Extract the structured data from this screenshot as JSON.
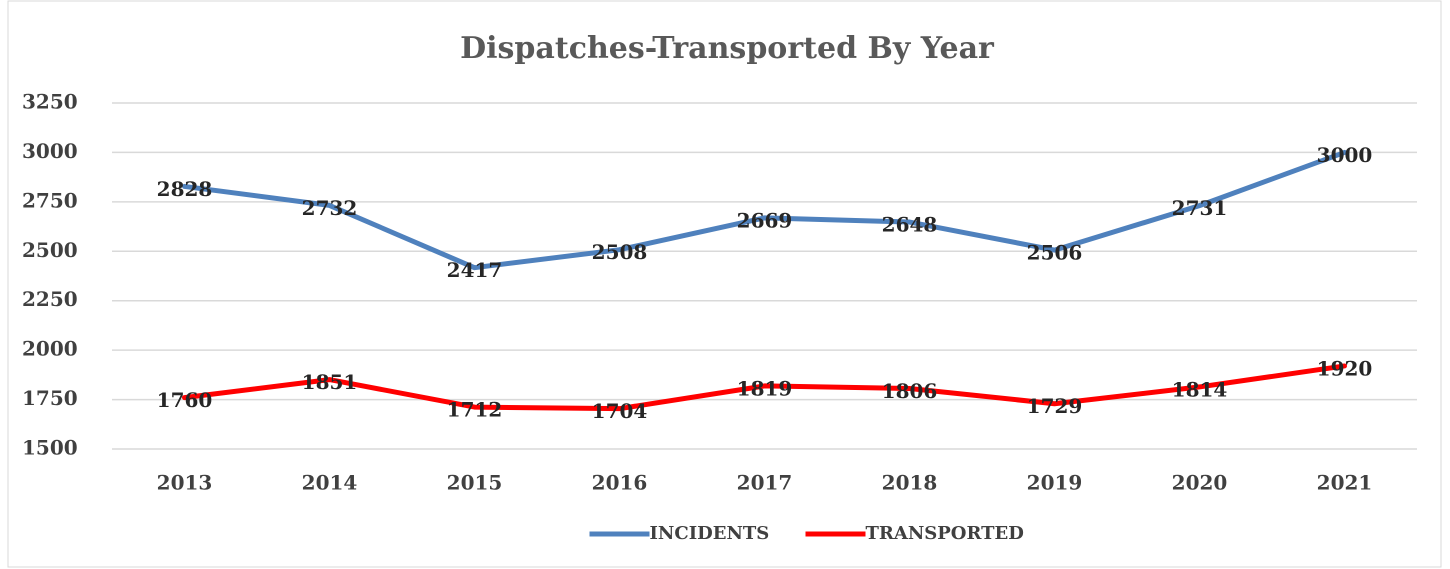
{
  "chart_data": {
    "type": "line",
    "title": "Dispatches-Transported By Year",
    "categories": [
      "2013",
      "2014",
      "2015",
      "2016",
      "2017",
      "2018",
      "2019",
      "2020",
      "2021"
    ],
    "series": [
      {
        "name": "INCIDENTS",
        "color": "#4f81bd",
        "values": [
          2828,
          2732,
          2417,
          2508,
          2669,
          2648,
          2506,
          2731,
          3000
        ]
      },
      {
        "name": "TRANSPORTED",
        "color": "#ff0000",
        "values": [
          1760,
          1851,
          1712,
          1704,
          1819,
          1806,
          1729,
          1814,
          1920
        ]
      }
    ],
    "ylim": [
      1500,
      3250
    ],
    "yticks": [
      1500,
      1750,
      2000,
      2250,
      2500,
      2750,
      3000,
      3250
    ],
    "grid": true,
    "legend": "bottom"
  }
}
